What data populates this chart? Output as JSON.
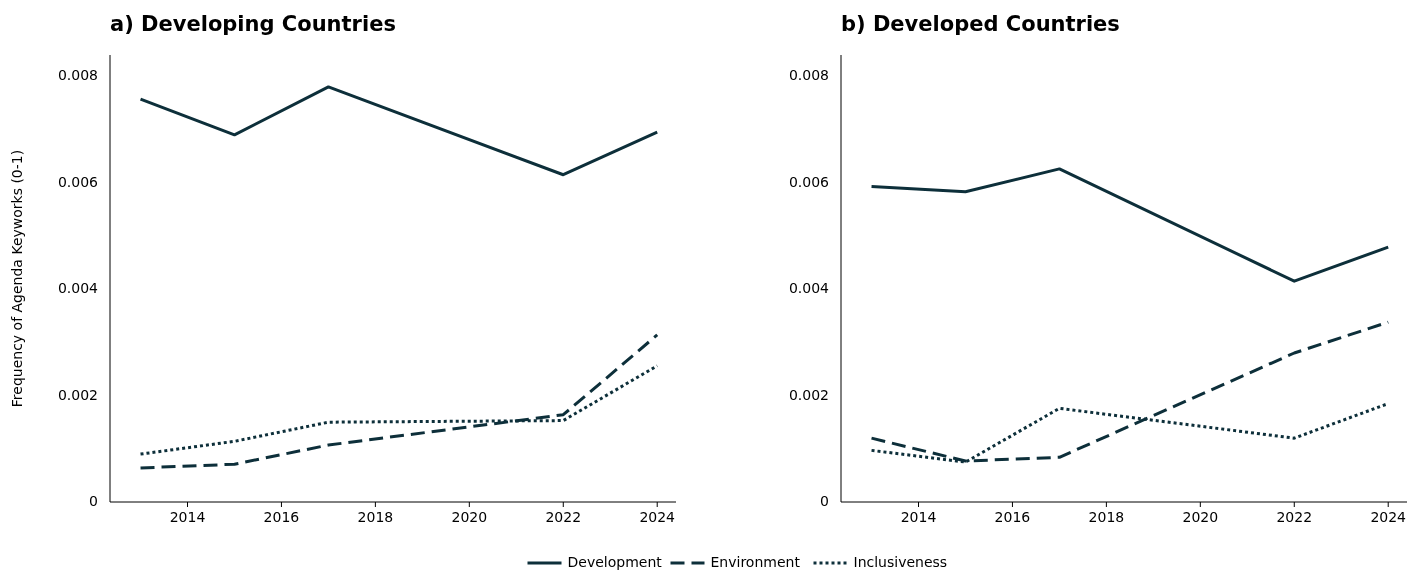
{
  "chart_data": [
    {
      "type": "line",
      "title": "a) Developing Countries",
      "ylabel": "Frequency of Agenda Keyworks (0-1)",
      "x": [
        2013,
        2015,
        2017,
        2022,
        2024
      ],
      "xlim": [
        2012.35,
        2024.4
      ],
      "xticks": [
        2014,
        2016,
        2018,
        2020,
        2022,
        2024
      ],
      "ylim": [
        0,
        0.0084
      ],
      "yticks": [
        {
          "value": 0,
          "label": "0"
        },
        0.002,
        0.004,
        0.006,
        0.008
      ],
      "grid": false,
      "legend": "bottom",
      "marker": "none",
      "series": [
        {
          "name": "Development",
          "color": "#0d2f3a",
          "line_style": "solid",
          "values": [
            0.00757,
            0.0069,
            0.0078,
            0.00615,
            0.00695
          ]
        },
        {
          "name": "Environment",
          "color": "#0d2f3a",
          "line_style": "dashed",
          "values": [
            0.00064,
            0.00071,
            0.00107,
            0.00164,
            0.00314
          ]
        },
        {
          "name": "Inclusiveness",
          "color": "#0d2f3a",
          "line_style": "dotted",
          "values": [
            0.0009,
            0.00114,
            0.0015,
            0.00153,
            0.00256
          ]
        }
      ]
    },
    {
      "type": "line",
      "title": "b) Developed Countries",
      "x": [
        2013,
        2015,
        2017,
        2022,
        2024
      ],
      "xlim": [
        2012.35,
        2024.4
      ],
      "xticks": [
        2014,
        2016,
        2018,
        2020,
        2022,
        2024
      ],
      "ylim": [
        0,
        0.0084
      ],
      "yticks": [
        {
          "value": 0,
          "label": "0"
        },
        0.002,
        0.004,
        0.006,
        0.008
      ],
      "grid": false,
      "legend": "bottom",
      "marker": "none",
      "series": [
        {
          "name": "Development",
          "color": "#0d2f3a",
          "line_style": "solid",
          "values": [
            0.00593,
            0.00583,
            0.00626,
            0.00415,
            0.00479
          ]
        },
        {
          "name": "Environment",
          "color": "#0d2f3a",
          "line_style": "dashed",
          "values": [
            0.0012,
            0.00077,
            0.00084,
            0.0028,
            0.00338
          ]
        },
        {
          "name": "Inclusiveness",
          "color": "#0d2f3a",
          "line_style": "dotted",
          "values": [
            0.00097,
            0.00075,
            0.00176,
            0.0012,
            0.00185
          ]
        }
      ]
    }
  ]
}
